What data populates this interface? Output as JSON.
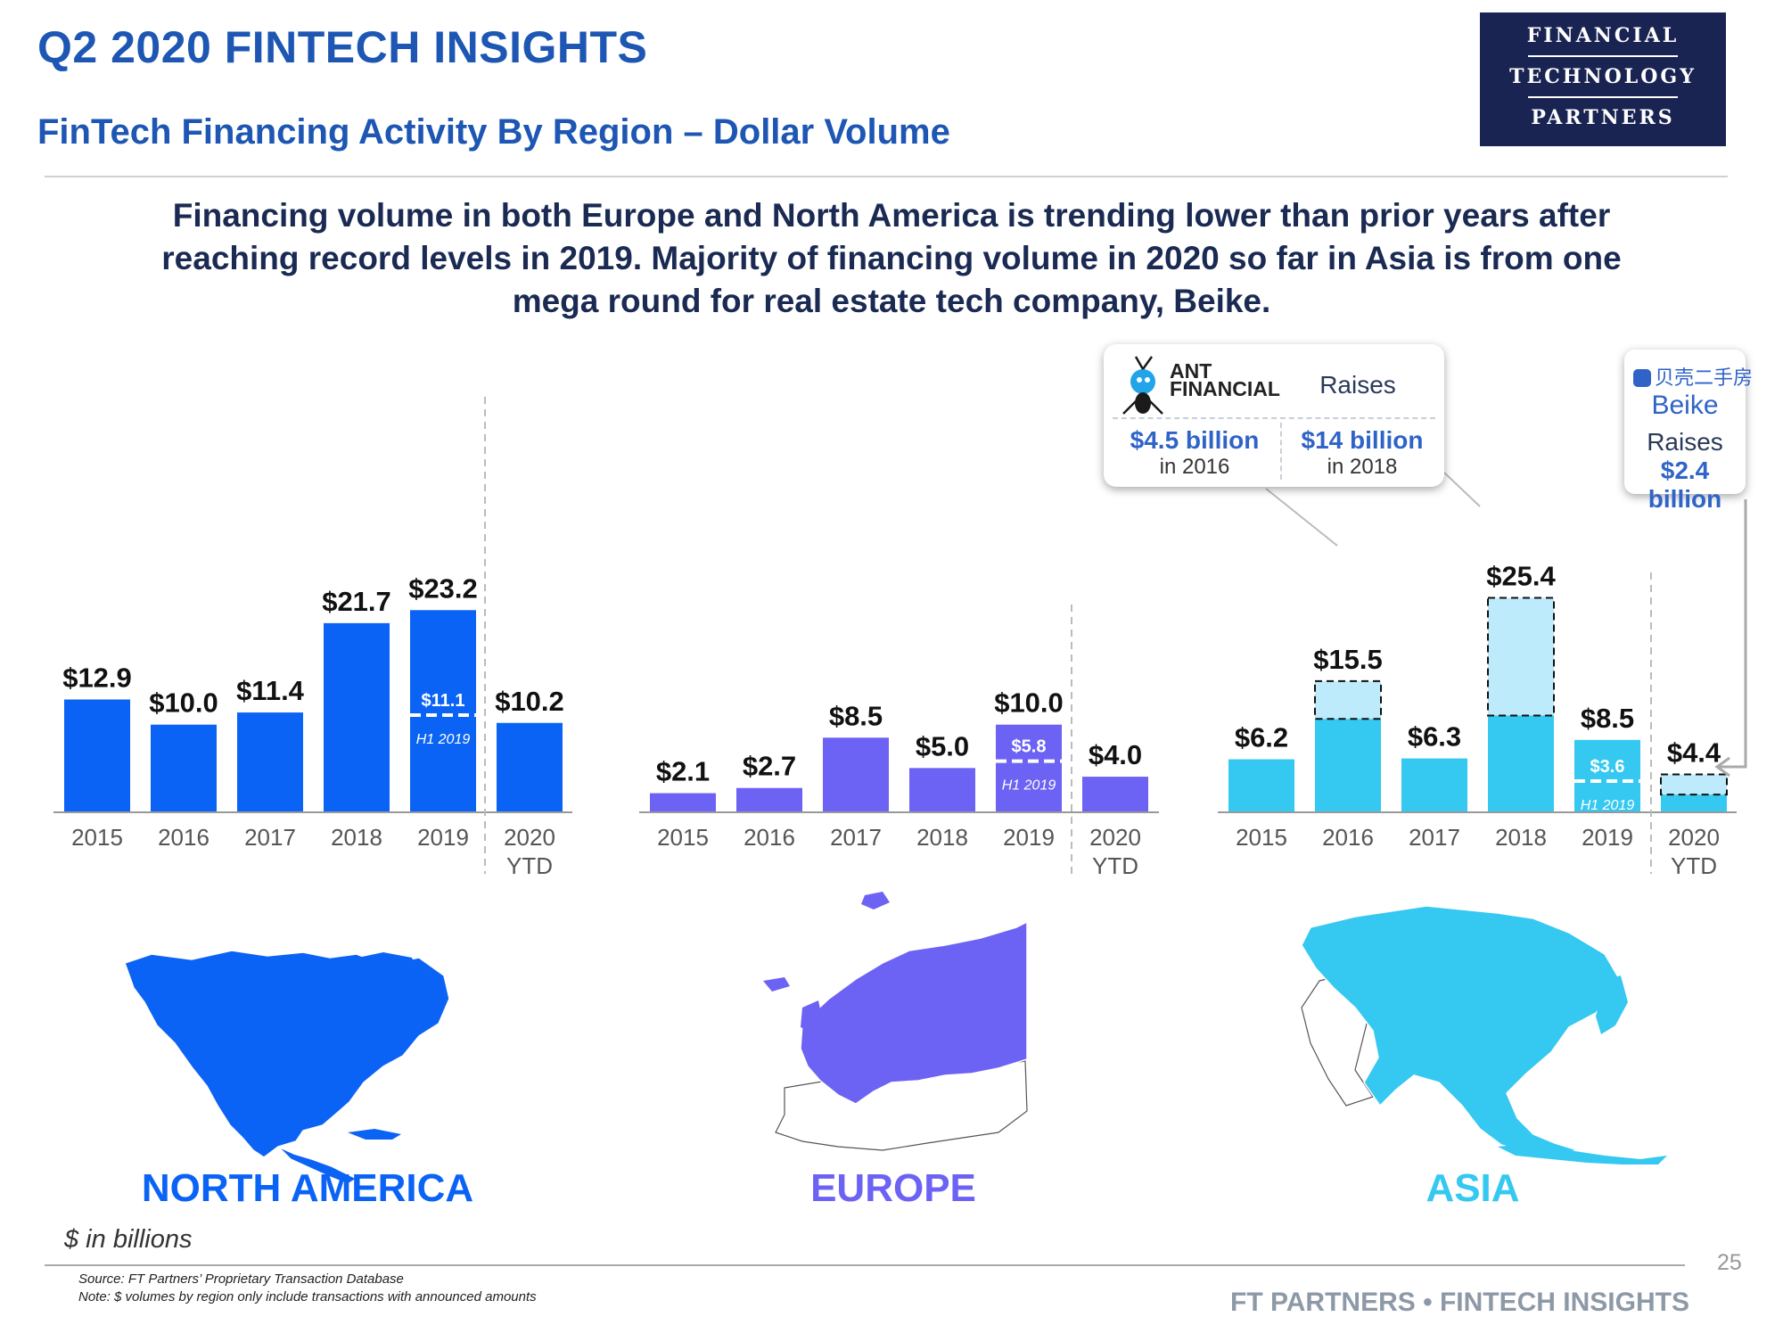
{
  "header": {
    "title": "Q2 2020 FINTECH INSIGHTS",
    "subtitle": "FinTech Financing Activity By Region – Dollar Volume",
    "logo_lines": [
      "FINANCIAL",
      "TECHNOLOGY",
      "PARTNERS"
    ]
  },
  "headline": "Financing volume in both Europe and North America is trending lower than prior years after reaching record levels in 2019. Majority of financing volume in 2020 so far in Asia is from one mega round for real estate tech company, Beike.",
  "callouts": {
    "ant": {
      "brand_line1": "ANT",
      "brand_line2": "FINANCIAL",
      "raises": "Raises",
      "amount_1": "$4.5 billion",
      "year_1": "in 2016",
      "amount_2": "$14 billion",
      "year_2": "in 2018"
    },
    "beike": {
      "chinese_name": "贝壳二手房",
      "name": "Beike",
      "raises": "Raises",
      "amount": "$2.4 billion"
    }
  },
  "chart_data": [
    {
      "type": "bar",
      "region": "NORTH AMERICA",
      "categories": [
        "2015",
        "2016",
        "2017",
        "2018",
        "2019",
        "2020 YTD"
      ],
      "values": [
        12.9,
        10.0,
        11.4,
        21.7,
        23.2,
        10.2
      ],
      "labels": [
        "$12.9",
        "$10.0",
        "$11.4",
        "$21.7",
        "$23.2",
        "$10.2"
      ],
      "h1_2019": {
        "value": 11.1,
        "label": "$11.1",
        "text": "H1 2019"
      },
      "color": "#0b63f6",
      "ylim": [
        0,
        24
      ]
    },
    {
      "type": "bar",
      "region": "EUROPE",
      "categories": [
        "2015",
        "2016",
        "2017",
        "2018",
        "2019",
        "2020 YTD"
      ],
      "values": [
        2.1,
        2.7,
        8.5,
        5.0,
        10.0,
        4.0
      ],
      "labels": [
        "$2.1",
        "$2.7",
        "$8.5",
        "$5.0",
        "$10.0",
        "$4.0"
      ],
      "h1_2019": {
        "value": 5.8,
        "label": "$5.8",
        "text": "H1 2019"
      },
      "color": "#6c62f4",
      "ylim": [
        0,
        24
      ]
    },
    {
      "type": "bar",
      "region": "ASIA",
      "categories": [
        "2015",
        "2016",
        "2017",
        "2018",
        "2019",
        "2020 YTD"
      ],
      "values": [
        6.2,
        15.5,
        6.3,
        25.4,
        8.5,
        4.4
      ],
      "labels": [
        "$6.2",
        "$15.5",
        "$6.3",
        "$25.4",
        "$8.5",
        "$4.4"
      ],
      "mega_rounds": [
        {
          "category": "2016",
          "value": 4.5
        },
        {
          "category": "2018",
          "value": 14.0
        },
        {
          "category": "2020 YTD",
          "value": 2.4
        }
      ],
      "h1_2019": {
        "value": 3.6,
        "label": "$3.6",
        "text": "H1 2019"
      },
      "color": "#35c8f0",
      "highlight_color": "#bdebfb",
      "ylim": [
        0,
        26
      ]
    }
  ],
  "regions": {
    "north_america": "NORTH AMERICA",
    "europe": "EUROPE",
    "asia": "ASIA"
  },
  "units": "$ in billions",
  "footer": {
    "source": "Source: FT Partners’ Proprietary Transaction Database",
    "note": "Note: $ volumes by region only include transactions with announced amounts",
    "brand": "FT PARTNERS • FINTECH INSIGHTS",
    "page_number": "25"
  }
}
